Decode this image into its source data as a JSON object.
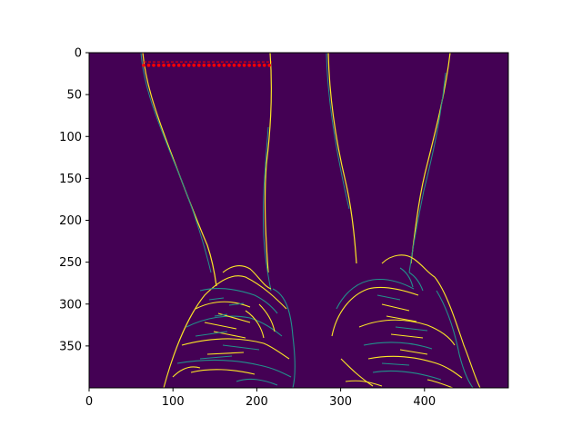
{
  "figure": {
    "xlim": [
      0,
      500
    ],
    "ylim": [
      400,
      0
    ],
    "xticks": [
      0,
      100,
      200,
      300,
      400
    ],
    "yticks": [
      0,
      50,
      100,
      150,
      200,
      250,
      300,
      350
    ],
    "colors": {
      "background": "#440154",
      "edge_bright": "#fde725",
      "edge_mid": "#21918c",
      "marker": "#ff0000"
    },
    "colormap": "viridis"
  },
  "chart_data": {
    "type": "heatmap",
    "image": "edge-detection map of two legs and sneakers (viridis colormap)",
    "xlim": [
      0,
      500
    ],
    "ylim": [
      400,
      0
    ],
    "markers": {
      "color": "#ff0000",
      "rows": [
        {
          "y": 11,
          "x_start": 65,
          "x_end": 218,
          "style": "dashed"
        },
        {
          "y": 15,
          "x_start": 65,
          "x_end": 218,
          "style": "dotted-points"
        }
      ]
    }
  }
}
